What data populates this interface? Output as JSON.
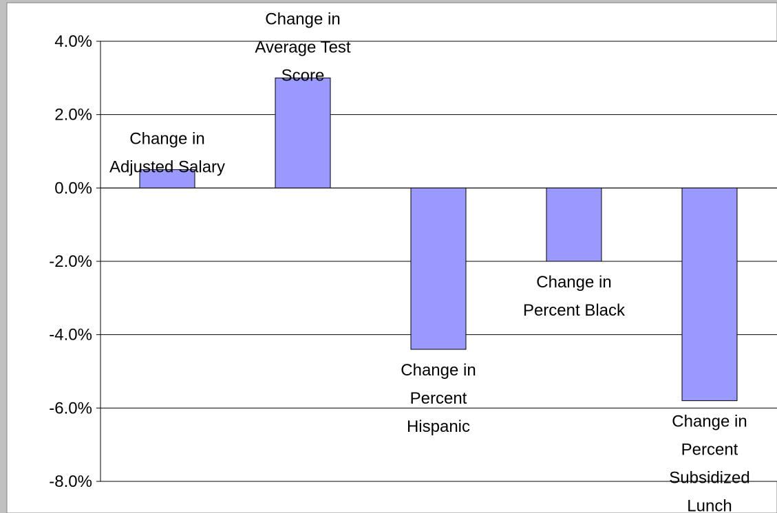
{
  "chart_data": {
    "type": "bar",
    "categories": [
      "Change in Adjusted Salary",
      "Change in Average Test Score",
      "Change in Percent Hispanic",
      "Change in Percent Black",
      "Change in Percent Subsidized Lunch"
    ],
    "values": [
      0.5,
      3.0,
      -4.4,
      -2.0,
      -5.8
    ],
    "data_labels": [
      [
        "Change in",
        "Adjusted Salary"
      ],
      [
        "Change in",
        "Average Test",
        "Score"
      ],
      [
        "Change in",
        "Percent",
        "Hispanic"
      ],
      [
        "Change in",
        "Percent Black"
      ],
      [
        "Change in",
        "Percent",
        "Subsidized",
        "Lunch"
      ]
    ],
    "title": "",
    "xlabel": "",
    "ylabel": "",
    "ylim": [
      -8.0,
      4.0
    ],
    "yticks": [
      4.0,
      2.0,
      0.0,
      -2.0,
      -4.0,
      -6.0,
      -8.0
    ],
    "ytick_labels": [
      "4.0%",
      "2.0%",
      "0.0%",
      "-2.0%",
      "-4.0%",
      "-6.0%",
      "-8.0%"
    ],
    "grid": true,
    "legend": "none",
    "bar_color": "#9999ff",
    "bar_edge_color": "#000000",
    "plot_background": "#ffffff",
    "chart_background": "#c0c0c0"
  }
}
